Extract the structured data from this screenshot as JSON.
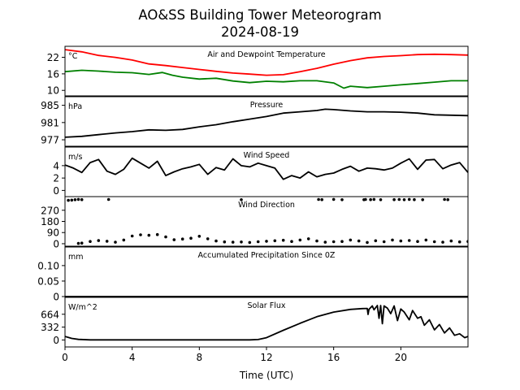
{
  "figure": {
    "title_line1": "AO&SS Building Tower Meteorogram",
    "title_line2": "2024-08-19",
    "xlabel": "Time (UTC)",
    "x_ticks": [
      0,
      4,
      8,
      12,
      16,
      20
    ],
    "x_range": [
      0,
      24
    ]
  },
  "chart_data": [
    {
      "type": "line",
      "title": "Air and Dewpoint Temperature",
      "unit_label": "°C",
      "ylim": [
        8,
        26
      ],
      "yticks": [
        10,
        16,
        22
      ],
      "series": [
        {
          "color": "#ff0000",
          "x": [
            0,
            1,
            2,
            3,
            4,
            5,
            6,
            7,
            8,
            9,
            10,
            11,
            12,
            13,
            14,
            15,
            16,
            17,
            18,
            19,
            20,
            21,
            22,
            23,
            24
          ],
          "y": [
            24.8,
            24.0,
            22.7,
            22.0,
            21.0,
            19.6,
            19.0,
            18.3,
            17.6,
            16.9,
            16.3,
            15.9,
            15.5,
            15.7,
            16.8,
            18.0,
            19.5,
            20.8,
            21.8,
            22.3,
            22.6,
            23.0,
            23.1,
            23.0,
            22.8
          ]
        },
        {
          "color": "#008000",
          "x": [
            0,
            1,
            2,
            3,
            4,
            5,
            5.8,
            6.4,
            7,
            8,
            9,
            10,
            11,
            12,
            13,
            14,
            15,
            16,
            16.6,
            17,
            18,
            19,
            20,
            21,
            22,
            23,
            24
          ],
          "y": [
            16.8,
            17.3,
            17.0,
            16.6,
            16.4,
            15.8,
            16.5,
            15.5,
            14.8,
            14.1,
            14.4,
            13.4,
            12.8,
            13.3,
            13.1,
            13.5,
            13.5,
            12.7,
            10.8,
            11.5,
            11.0,
            11.5,
            12.0,
            12.5,
            13.0,
            13.5,
            13.5
          ]
        }
      ]
    },
    {
      "type": "line",
      "title": "Pressure",
      "unit_label": "hPa",
      "ylim": [
        975.5,
        987
      ],
      "yticks": [
        977,
        981,
        985
      ],
      "series": [
        {
          "color": "#000000",
          "x": [
            0,
            1,
            2,
            3,
            4,
            5,
            6,
            7,
            8,
            9,
            10,
            11,
            12,
            13,
            14,
            15,
            15.5,
            16,
            17,
            18,
            19,
            20,
            21,
            22,
            23,
            24
          ],
          "y": [
            977.6,
            977.8,
            978.2,
            978.6,
            978.9,
            979.3,
            979.2,
            979.4,
            980.0,
            980.5,
            981.2,
            981.8,
            982.4,
            983.2,
            983.5,
            983.8,
            984.1,
            984.0,
            983.7,
            983.5,
            983.5,
            983.4,
            983.2,
            982.8,
            982.7,
            982.6
          ]
        }
      ]
    },
    {
      "type": "line",
      "title": "Wind Speed",
      "unit_label": "m/s",
      "ylim": [
        -1,
        7
      ],
      "yticks": [
        0,
        2,
        4
      ],
      "series": [
        {
          "color": "#000000",
          "x": [
            0,
            0.5,
            1,
            1.5,
            2,
            2.5,
            3,
            3.5,
            4,
            4.5,
            5,
            5.5,
            6,
            6.5,
            7,
            7.5,
            8,
            8.5,
            9,
            9.5,
            10,
            10.5,
            11,
            11.5,
            12,
            12.5,
            13,
            13.5,
            14,
            14.5,
            15,
            15.5,
            16,
            16.5,
            17,
            17.5,
            18,
            18.5,
            19,
            19.5,
            20,
            20.5,
            21,
            21.5,
            22,
            22.5,
            23,
            23.5,
            24
          ],
          "y": [
            4.1,
            3.6,
            2.9,
            4.5,
            5.0,
            3.1,
            2.6,
            3.4,
            5.2,
            4.4,
            3.6,
            4.7,
            2.4,
            3.0,
            3.5,
            3.8,
            4.2,
            2.6,
            3.7,
            3.3,
            5.1,
            4.0,
            3.8,
            4.4,
            4.0,
            3.6,
            1.8,
            2.4,
            2.0,
            3.0,
            2.2,
            2.6,
            2.8,
            3.4,
            3.9,
            3.1,
            3.6,
            3.5,
            3.3,
            3.6,
            4.4,
            5.1,
            3.4,
            4.9,
            5.0,
            3.5,
            4.1,
            4.5,
            2.9
          ]
        }
      ]
    },
    {
      "type": "scatter",
      "title": "Wind Direction",
      "unit_label": "",
      "ylim": [
        -20,
        380
      ],
      "yticks": [
        0,
        90,
        180,
        270
      ],
      "series": [
        {
          "color": "#000000",
          "x": [
            0.2,
            0.4,
            0.6,
            0.8,
            1.0,
            2.6,
            10.5,
            15.1,
            15.3,
            16.0,
            16.5,
            17.8,
            17.9,
            18.2,
            18.4,
            18.8,
            19.6,
            19.9,
            20.2,
            20.5,
            20.8,
            21.3,
            22.6,
            22.8
          ],
          "y": [
            350,
            352,
            355,
            358,
            356,
            357,
            355,
            357,
            356,
            358,
            355,
            355,
            357,
            356,
            358,
            355,
            356,
            357,
            355,
            358,
            356,
            355,
            357,
            356
          ]
        },
        {
          "color": "#000000",
          "x": [
            0.8,
            1,
            1.5,
            2,
            2.5,
            3,
            3.5,
            4,
            4.5,
            5,
            5.5,
            6,
            6.5,
            7,
            7.5,
            8,
            8.5,
            9,
            9.5,
            10,
            10.5,
            11,
            11.5,
            12,
            12.5,
            13,
            13.5,
            14,
            14.5,
            15,
            15.5,
            16,
            16.5,
            17,
            17.5,
            18,
            18.5,
            19,
            19.5,
            20,
            20.5,
            21,
            21.5,
            22,
            22.5,
            23,
            23.5,
            24
          ],
          "y": [
            2,
            5,
            18,
            25,
            20,
            12,
            30,
            62,
            72,
            68,
            74,
            55,
            32,
            38,
            44,
            60,
            40,
            22,
            15,
            12,
            14,
            10,
            16,
            20,
            24,
            28,
            18,
            30,
            40,
            22,
            12,
            16,
            18,
            30,
            22,
            10,
            24,
            16,
            30,
            22,
            26,
            18,
            30,
            16,
            12,
            22,
            15,
            18
          ]
        }
      ]
    },
    {
      "type": "line",
      "title": "Accumulated Precipitation Since 0Z",
      "unit_label": "mm",
      "ylim": [
        0,
        0.16
      ],
      "yticks": [
        0.0,
        0.05,
        0.1
      ],
      "series": [
        {
          "color": "#000000",
          "x": [
            0,
            24
          ],
          "y": [
            0,
            0
          ]
        }
      ]
    },
    {
      "type": "line",
      "title": "Solar Flux",
      "unit_label": "W/m^2",
      "ylim": [
        -180,
        1100
      ],
      "yticks": [
        0,
        332,
        664
      ],
      "series": [
        {
          "color": "#000000",
          "x": [
            0,
            0.4,
            0.8,
            1.5,
            3,
            6,
            9,
            10.5,
            11,
            11.5,
            12,
            13,
            14,
            15,
            16,
            17,
            17.7,
            18,
            18.05,
            18.1,
            18.3,
            18.4,
            18.6,
            18.7,
            18.8,
            18.9,
            19.0,
            19.2,
            19.4,
            19.6,
            19.8,
            20.0,
            20.2,
            20.5,
            20.7,
            21,
            21.2,
            21.4,
            21.7,
            22,
            22.3,
            22.6,
            22.9,
            23.2,
            23.5,
            23.8,
            24
          ],
          "y": [
            90,
            40,
            15,
            3,
            2,
            2,
            2,
            2,
            2,
            10,
            60,
            250,
            430,
            600,
            720,
            790,
            810,
            815,
            660,
            790,
            880,
            780,
            890,
            560,
            890,
            420,
            880,
            820,
            680,
            880,
            500,
            800,
            720,
            520,
            760,
            560,
            600,
            380,
            520,
            260,
            400,
            180,
            310,
            120,
            160,
            60,
            90
          ]
        }
      ]
    }
  ]
}
